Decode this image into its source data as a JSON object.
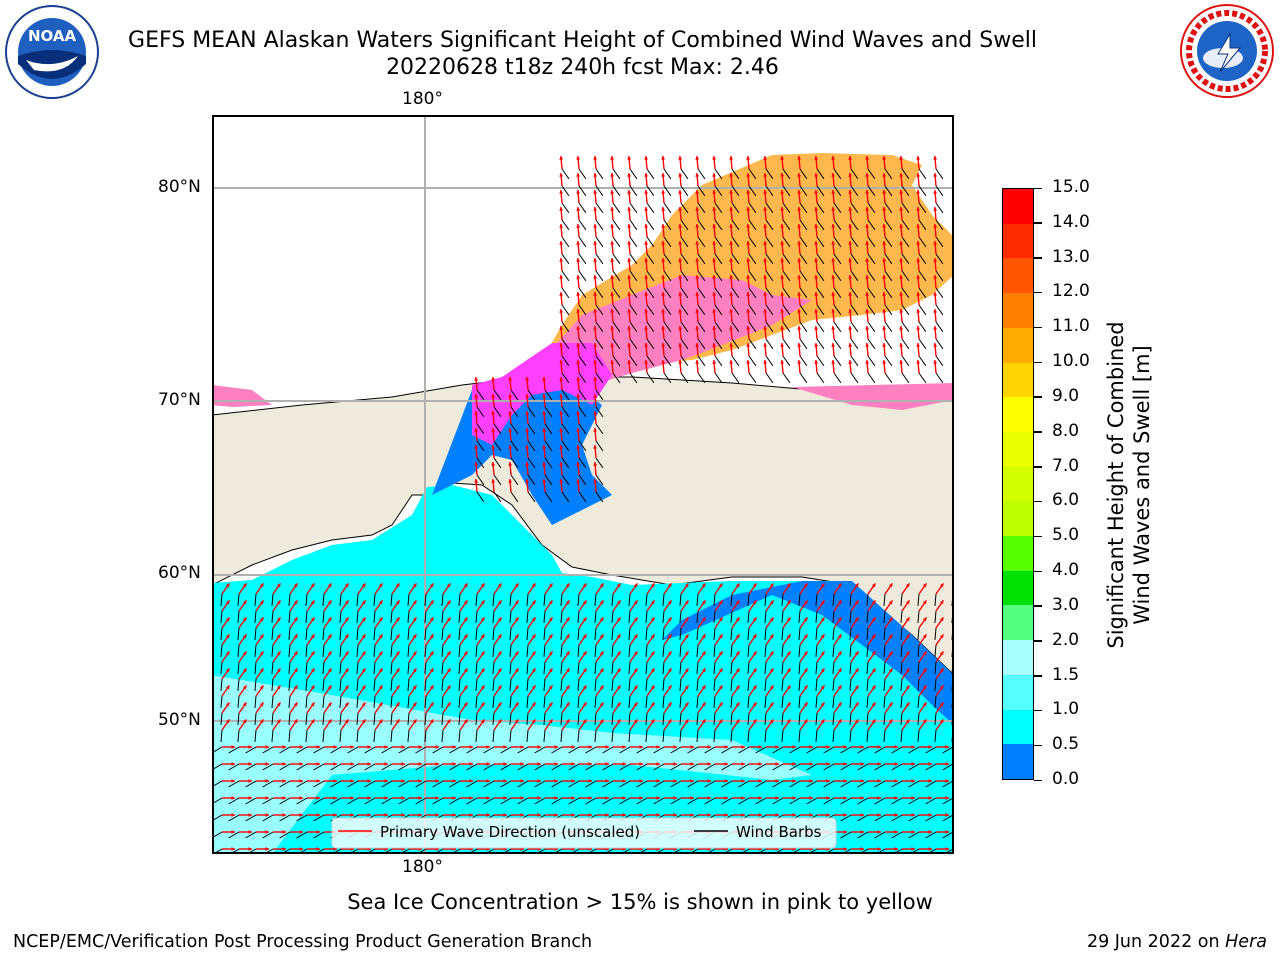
{
  "header": {
    "title_line1": "GEFS MEAN Alaskan Waters Significant Height of Combined Wind Waves and Swell",
    "title_line2": "20220628 t18z 240h fcst   Max: 2.46"
  },
  "logos": {
    "left": {
      "text": "NOAA",
      "icon": "noaa-logo"
    },
    "right": {
      "text": "NATIONAL WEATHER SERVICE",
      "icon": "nws-logo"
    }
  },
  "map": {
    "lon_label_top": "180°",
    "lon_label_bottom": "180°",
    "lat_labels": [
      "80°N",
      "70°N",
      "60°N",
      "50°N"
    ],
    "colors": {
      "land": "#efebdc",
      "ocean_cyan": "#00ffff",
      "ocean_light": "#99ffff",
      "ocean_blue": "#0080ff",
      "ice_orange": "#ffb84d",
      "ice_pink": "#ff80c0",
      "ice_magenta": "#ff40ff",
      "arrow": "#ff0000"
    },
    "legend": {
      "wave_label": "Primary Wave Direction (unscaled)",
      "wind_label": "Wind Barbs"
    },
    "note": "Sea Ice Concentration > 15% is shown in pink to yellow"
  },
  "colorbar": {
    "label_line1": "Significant Height of Combined",
    "label_line2": "Wind Waves and Swell [m]",
    "ticks": [
      "15.0",
      "14.0",
      "13.0",
      "12.0",
      "11.0",
      "10.0",
      "9.0",
      "8.0",
      "7.0",
      "6.0",
      "5.0",
      "4.0",
      "3.0",
      "2.0",
      "1.5",
      "1.0",
      "0.5",
      "0.0"
    ],
    "colors": [
      "#ff0000",
      "#ff2a00",
      "#ff5500",
      "#ff8000",
      "#ffaa00",
      "#ffd400",
      "#ffff00",
      "#eaff00",
      "#d4ff00",
      "#bfff00",
      "#55ff00",
      "#00e000",
      "#55ff80",
      "#aaffff",
      "#55ffff",
      "#00ffff",
      "#0080ff",
      "#0000ff"
    ]
  },
  "footer": {
    "left": "NCEP/EMC/Verification Post Processing Product Generation Branch",
    "right_date": "29 Jun 2022 on ",
    "right_host": "Hera"
  }
}
